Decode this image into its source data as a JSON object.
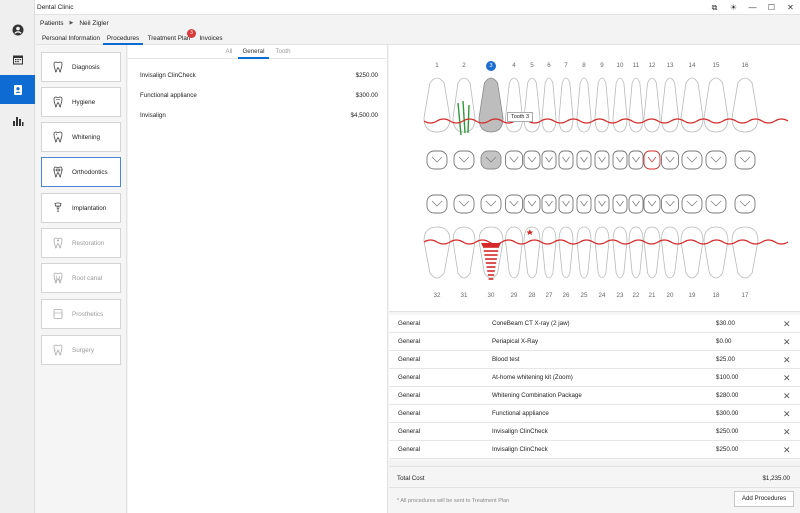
{
  "app": {
    "title": "Dental Clinic"
  },
  "window_controls": [
    "restore",
    "sun",
    "minimize",
    "maximize",
    "close"
  ],
  "nav": [
    {
      "icon": "user-circle-icon",
      "active": false
    },
    {
      "icon": "calendar-icon",
      "active": false
    },
    {
      "icon": "patient-card-icon",
      "active": true
    },
    {
      "icon": "bar-chart-icon",
      "active": false
    }
  ],
  "breadcrumb": {
    "root": "Patients",
    "current": "Neil Zigler"
  },
  "tabs": [
    {
      "label": "Personal Information",
      "active": false
    },
    {
      "label": "Procedures",
      "active": true
    },
    {
      "label": "Treatment Plan",
      "active": false,
      "badge": "3"
    },
    {
      "label": "Invoices",
      "active": false
    }
  ],
  "categories": [
    {
      "label": "Diagnosis",
      "icon": "tooth-diagnosis-icon",
      "state": "normal"
    },
    {
      "label": "Hygiene",
      "icon": "tooth-hygiene-icon",
      "state": "normal"
    },
    {
      "label": "Whitening",
      "icon": "tooth-whitening-icon",
      "state": "normal"
    },
    {
      "label": "Orthodontics",
      "icon": "tooth-orthodontics-icon",
      "state": "active"
    },
    {
      "label": "Implantation",
      "icon": "tooth-implant-icon",
      "state": "normal"
    },
    {
      "label": "Restoration",
      "icon": "tooth-restoration-icon",
      "state": "disabled"
    },
    {
      "label": "Root canal",
      "icon": "tooth-root-canal-icon",
      "state": "disabled"
    },
    {
      "label": "Prosthetics",
      "icon": "tooth-prosthetics-icon",
      "state": "disabled"
    },
    {
      "label": "Surgery",
      "icon": "tooth-surgery-icon",
      "state": "disabled"
    }
  ],
  "procedure_tabs": [
    {
      "label": "All",
      "active": false
    },
    {
      "label": "General",
      "active": true
    },
    {
      "label": "Tooth",
      "active": false
    }
  ],
  "procedures": [
    {
      "name": "Invisalign ClinCheck",
      "price": "$250.00"
    },
    {
      "name": "Functional appliance",
      "price": "$300.00"
    },
    {
      "name": "Invisalign",
      "price": "$4,500.00"
    }
  ],
  "upper_teeth": [
    "1",
    "2",
    "3",
    "4",
    "5",
    "6",
    "7",
    "8",
    "9",
    "10",
    "11",
    "12",
    "13",
    "14",
    "15",
    "16"
  ],
  "lower_teeth": [
    "32",
    "31",
    "30",
    "29",
    "28",
    "27",
    "26",
    "25",
    "24",
    "23",
    "22",
    "21",
    "20",
    "19",
    "18",
    "17"
  ],
  "selected_tooth": "3",
  "tooltip": "Tooth 3",
  "colors": {
    "accent": "#0d6bd1",
    "badge": "#d63a3a",
    "marking": "#d42a2a",
    "treated": "#2f9a3a"
  },
  "plan": [
    {
      "category": "General",
      "procedure": "ConeBeam CT X-ray (2 jaw)",
      "price": "$30.00"
    },
    {
      "category": "General",
      "procedure": "Periapical X-Ray",
      "price": "$0.00"
    },
    {
      "category": "General",
      "procedure": "Blood test",
      "price": "$25.00"
    },
    {
      "category": "General",
      "procedure": "At-home whitening kit (Zoom)",
      "price": "$100.00"
    },
    {
      "category": "General",
      "procedure": "Whitening Combination Package",
      "price": "$280.00"
    },
    {
      "category": "General",
      "procedure": "Functional appliance",
      "price": "$300.00"
    },
    {
      "category": "General",
      "procedure": "Invisalign ClinCheck",
      "price": "$250.00"
    },
    {
      "category": "General",
      "procedure": "Invisalign ClinCheck",
      "price": "$250.00"
    }
  ],
  "plan_remove_glyph": "✕",
  "total": {
    "label": "Total Cost",
    "value": "$1,235.00"
  },
  "note": "* All procedures will be sent to Treatment Plan",
  "add_button": "Add Procedures"
}
